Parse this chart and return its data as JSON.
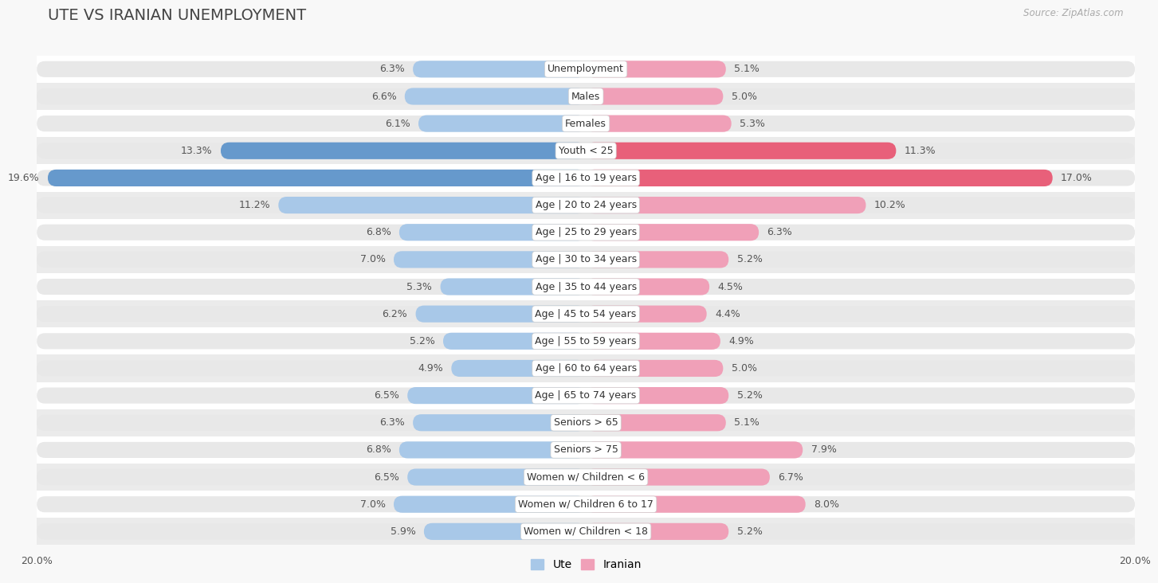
{
  "title": "UTE VS IRANIAN UNEMPLOYMENT",
  "source": "Source: ZipAtlas.com",
  "categories": [
    "Unemployment",
    "Males",
    "Females",
    "Youth < 25",
    "Age | 16 to 19 years",
    "Age | 20 to 24 years",
    "Age | 25 to 29 years",
    "Age | 30 to 34 years",
    "Age | 35 to 44 years",
    "Age | 45 to 54 years",
    "Age | 55 to 59 years",
    "Age | 60 to 64 years",
    "Age | 65 to 74 years",
    "Seniors > 65",
    "Seniors > 75",
    "Women w/ Children < 6",
    "Women w/ Children 6 to 17",
    "Women w/ Children < 18"
  ],
  "ute_values": [
    6.3,
    6.6,
    6.1,
    13.3,
    19.6,
    11.2,
    6.8,
    7.0,
    5.3,
    6.2,
    5.2,
    4.9,
    6.5,
    6.3,
    6.8,
    6.5,
    7.0,
    5.9
  ],
  "iranian_values": [
    5.1,
    5.0,
    5.3,
    11.3,
    17.0,
    10.2,
    6.3,
    5.2,
    4.5,
    4.4,
    4.9,
    5.0,
    5.2,
    5.1,
    7.9,
    6.7,
    8.0,
    5.2
  ],
  "max_val": 20.0,
  "ute_color_normal": "#a8c8e8",
  "ute_color_highlight": "#6699cc",
  "iranian_color_normal": "#f0a0b8",
  "iranian_color_highlight": "#e8607a",
  "row_bg_white": "#ffffff",
  "row_bg_gray": "#ebebeb",
  "bar_bg_color": "#e0e0e0",
  "label_color": "#555555",
  "title_color": "#444444",
  "source_color": "#aaaaaa",
  "title_fontsize": 14,
  "label_fontsize": 9,
  "value_fontsize": 9,
  "axis_fontsize": 9,
  "legend_fontsize": 10,
  "source_fontsize": 8.5
}
